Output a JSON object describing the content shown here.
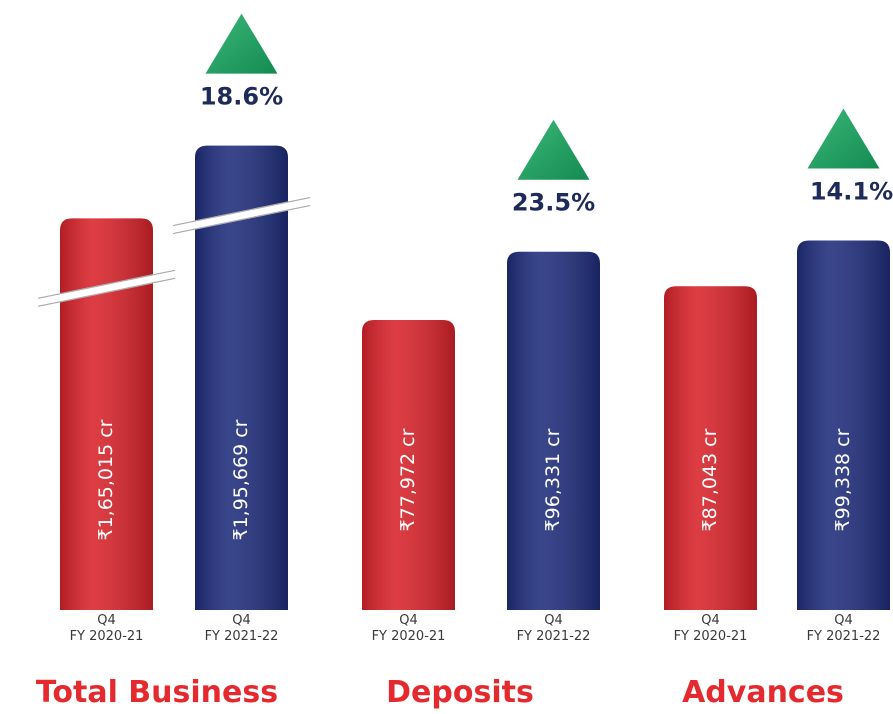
{
  "chart_data": [
    {
      "type": "bar",
      "title": "Total Business",
      "categories": [
        "Q4\nFY 2020-21",
        "Q4\nFY 2021-22"
      ],
      "values": [
        165015,
        195669
      ],
      "value_labels": [
        "₹1,65,015 cr",
        "₹1,95,669 cr"
      ],
      "colors": [
        "#d8232a",
        "#1f2d7b"
      ],
      "ylim": [
        0,
        257000
      ],
      "annotation": "18.6%",
      "axis_break": true
    },
    {
      "type": "bar",
      "title": "Deposits",
      "categories": [
        "Q4\nFY 2020-21",
        "Q4\nFY 2021-22"
      ],
      "values": [
        77972,
        96331
      ],
      "value_labels": [
        "₹77,972 cr",
        "₹96,331 cr"
      ],
      "colors": [
        "#d8232a",
        "#1f2d7b"
      ],
      "ylim": [
        0,
        164000
      ],
      "annotation": "23.5%",
      "axis_break": false
    },
    {
      "type": "bar",
      "title": "Advances",
      "categories": [
        "Q4\nFY 2020-21",
        "Q4\nFY 2021-22"
      ],
      "values": [
        87043,
        99338
      ],
      "value_labels": [
        "₹87,043 cr",
        "₹99,338 cr"
      ],
      "colors": [
        "#d8232a",
        "#1f2d7b"
      ],
      "ylim": [
        0,
        164000
      ],
      "annotation": "14.1%",
      "axis_break": false
    }
  ]
}
